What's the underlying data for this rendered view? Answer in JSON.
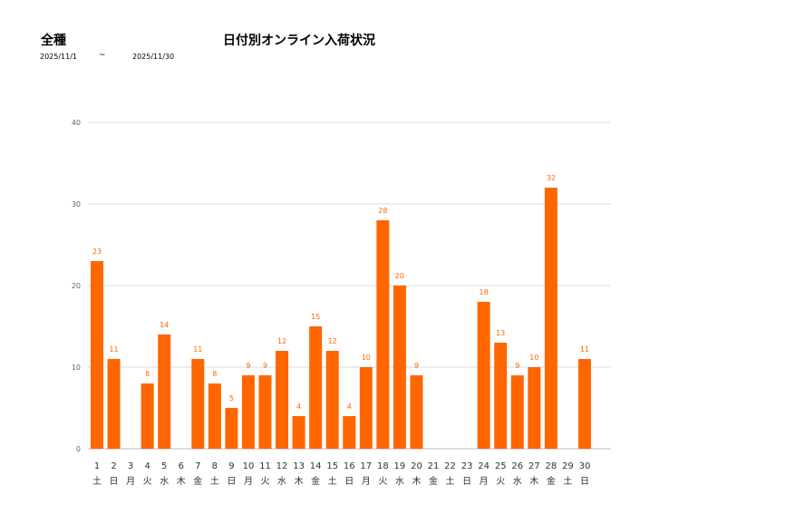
{
  "header": {
    "category": "全種",
    "title": "日付別オンライン入荷状況",
    "date_from": "2025/11/1",
    "tilde": "~",
    "date_to": "2025/11/30"
  },
  "chart_data": {
    "type": "bar",
    "color": "#ff6600",
    "gridline_color": "#d9d9d9",
    "ylim": [
      0,
      40
    ],
    "yticks": [
      0,
      10,
      20,
      30,
      40
    ],
    "grid": true,
    "legend": "none",
    "categories": [
      "1",
      "2",
      "3",
      "4",
      "5",
      "6",
      "7",
      "8",
      "9",
      "10",
      "11",
      "12",
      "13",
      "14",
      "15",
      "16",
      "17",
      "18",
      "19",
      "20",
      "21",
      "22",
      "23",
      "24",
      "25",
      "26",
      "27",
      "28",
      "29",
      "30"
    ],
    "weekdays": [
      "土",
      "日",
      "月",
      "火",
      "水",
      "木",
      "金",
      "土",
      "日",
      "月",
      "火",
      "水",
      "木",
      "金",
      "土",
      "日",
      "月",
      "火",
      "水",
      "木",
      "金",
      "土",
      "日",
      "月",
      "火",
      "水",
      "木",
      "金",
      "土",
      "日"
    ],
    "values": [
      23,
      11,
      0,
      8,
      14,
      0,
      11,
      8,
      5,
      9,
      9,
      12,
      4,
      15,
      12,
      4,
      10,
      28,
      20,
      9,
      0,
      0,
      0,
      18,
      13,
      9,
      10,
      32,
      0,
      11
    ]
  }
}
